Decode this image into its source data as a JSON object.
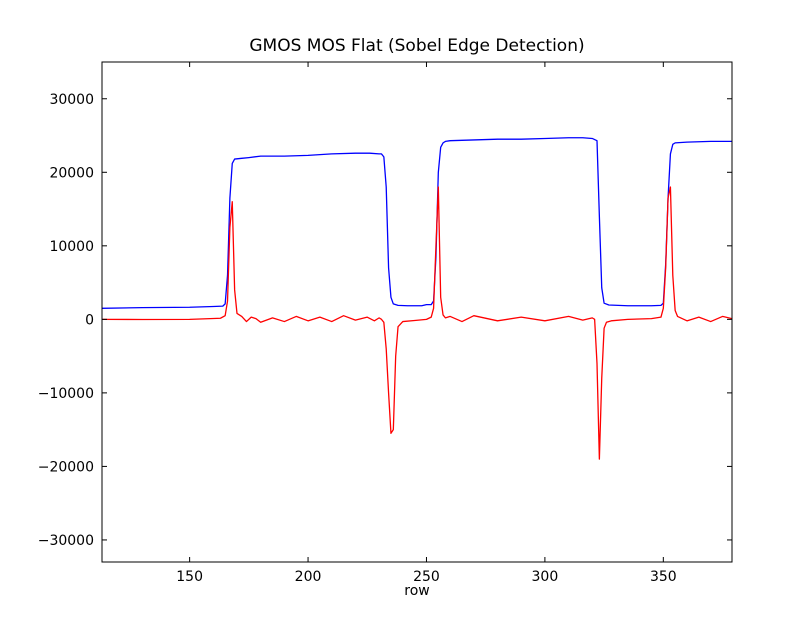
{
  "chart_data": {
    "type": "line",
    "title": "GMOS MOS Flat (Sobel Edge Detection)",
    "xlabel": "row",
    "ylabel": "",
    "xlim": [
      113,
      379
    ],
    "ylim": [
      -33000,
      35000
    ],
    "xticks": [
      150,
      200,
      250,
      300,
      350
    ],
    "yticks": [
      -30000,
      -20000,
      -10000,
      0,
      10000,
      20000,
      30000
    ],
    "xtick_labels": [
      "150",
      "200",
      "250",
      "300",
      "350"
    ],
    "ytick_labels": [
      "−30000",
      "−20000",
      "−10000",
      "0",
      "10000",
      "20000",
      "30000"
    ],
    "grid": false,
    "series": [
      {
        "color": "#0000ff",
        "x": [
          113,
          130,
          150,
          160,
          164,
          165,
          166,
          167,
          168,
          169,
          172,
          175,
          180,
          190,
          200,
          210,
          220,
          226,
          230,
          231,
          232,
          233,
          234,
          235,
          236,
          238,
          242,
          248,
          250,
          252,
          253,
          254,
          255,
          256,
          257,
          258,
          260,
          270,
          280,
          290,
          300,
          310,
          316,
          320,
          322,
          323,
          324,
          325,
          327,
          335,
          345,
          349,
          350,
          351,
          352,
          353,
          354,
          355,
          360,
          370,
          379
        ],
        "y": [
          1500,
          1600,
          1650,
          1750,
          1800,
          2100,
          6000,
          16500,
          21200,
          21800,
          21900,
          22000,
          22200,
          22200,
          22300,
          22500,
          22600,
          22600,
          22500,
          22500,
          22100,
          18000,
          7000,
          3000,
          2100,
          1900,
          1850,
          1850,
          2000,
          2000,
          2500,
          8500,
          20000,
          23400,
          24000,
          24200,
          24300,
          24400,
          24500,
          24500,
          24600,
          24700,
          24700,
          24600,
          24300,
          14000,
          4300,
          2200,
          1950,
          1850,
          1850,
          1900,
          2200,
          7500,
          16500,
          22500,
          23800,
          24000,
          24100,
          24200,
          24200
        ]
      },
      {
        "color": "#ff0000",
        "x": [
          113,
          130,
          150,
          163,
          165,
          166,
          167,
          168,
          169,
          170,
          172,
          174,
          176,
          178,
          180,
          185,
          190,
          195,
          200,
          205,
          210,
          215,
          220,
          225,
          228,
          230,
          231,
          232,
          233,
          234,
          235,
          236,
          237,
          238,
          240,
          245,
          250,
          252,
          253,
          254,
          255,
          256,
          257,
          258,
          260,
          265,
          270,
          280,
          290,
          300,
          310,
          316,
          320,
          321,
          322,
          323,
          324,
          325,
          326,
          328,
          335,
          345,
          349,
          350,
          351,
          352,
          353,
          354,
          355,
          356,
          360,
          365,
          370,
          375,
          379
        ],
        "y": [
          0,
          -20,
          0,
          150,
          500,
          2500,
          12500,
          16000,
          4000,
          800,
          400,
          -300,
          300,
          100,
          -400,
          200,
          -300,
          400,
          -200,
          300,
          -300,
          500,
          -100,
          300,
          -200,
          200,
          0,
          -400,
          -4000,
          -10000,
          -15500,
          -15000,
          -5000,
          -1000,
          -300,
          -150,
          0,
          300,
          1500,
          10000,
          18000,
          3000,
          600,
          200,
          400,
          -300,
          500,
          -200,
          300,
          -200,
          400,
          -100,
          200,
          0,
          -6000,
          -19000,
          -8000,
          -1200,
          -400,
          -200,
          0,
          100,
          300,
          1500,
          7000,
          16500,
          18000,
          6000,
          1200,
          400,
          -200,
          300,
          -300,
          400,
          100
        ]
      }
    ]
  }
}
